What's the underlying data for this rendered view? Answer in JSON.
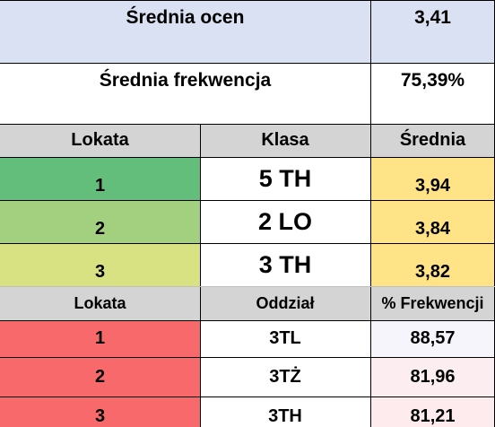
{
  "summary": {
    "avg_grades_label": "Średnia ocen",
    "avg_grades_value": "3,41",
    "avg_attendance_label": "Średnia frekwencja",
    "avg_attendance_value": "75,39%"
  },
  "grades_table": {
    "headers": [
      "Lokata",
      "Klasa",
      "Średnia"
    ],
    "rows": [
      {
        "rank": "1",
        "class": "5 TH",
        "average": "3,94"
      },
      {
        "rank": "2",
        "class": "2 LO",
        "average": "3,84"
      },
      {
        "rank": "3",
        "class": "3 TH",
        "average": "3,82"
      }
    ]
  },
  "attendance_table": {
    "headers": [
      "Lokata",
      "Oddział",
      "% Frekwencji"
    ],
    "rows": [
      {
        "rank": "1",
        "division": "3TL",
        "attendance": "88,57"
      },
      {
        "rank": "2",
        "division": "3TŻ",
        "attendance": "81,96"
      },
      {
        "rank": "3",
        "division": "3TH",
        "attendance": "81,21"
      }
    ]
  },
  "colors": {
    "summary_bg": "#d9e1f2",
    "header_bg": "#d4d4d4",
    "rank1_green": "#63be7b",
    "rank2_green": "#a2d07f",
    "rank3_green": "#d9e282",
    "average_yellow": "#ffe386",
    "rank_red": "#f8696b"
  }
}
